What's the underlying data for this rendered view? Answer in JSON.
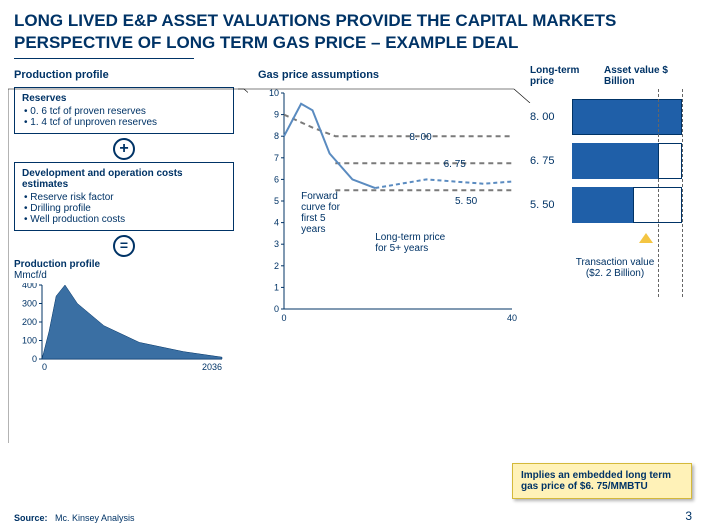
{
  "colors": {
    "brand": "#003366",
    "bar_fill": "#1f5fa8",
    "area_fill": "#3a6fa3",
    "forward_line": "#5a8bc0",
    "longterm_line": "#7a7a7a",
    "callout_bg": "#fff2b8",
    "callout_border": "#d4b93a",
    "triangle": "#f4c542"
  },
  "title": "LONG LIVED E&P ASSET VALUATIONS PROVIDE THE CAPITAL MARKETS PERSPECTIVE  OF LONG TERM GAS PRICE – EXAMPLE DEAL",
  "left": {
    "header": "Production profile",
    "reserves": {
      "title": "Reserves",
      "bullets": [
        "0. 6 tcf of proven reserves",
        "1. 4 tcf of unproven reserves"
      ]
    },
    "costs": {
      "title": "Development and operation costs estimates",
      "bullets": [
        "Reserve risk factor",
        "Drilling profile",
        "Well production costs"
      ]
    },
    "profile": {
      "title": "Production profile",
      "unit": "Mmcf/d"
    },
    "profile_chart": {
      "type": "area",
      "x_range": [
        0,
        2036
      ],
      "y_ticks": [
        0,
        100,
        200,
        300,
        400
      ],
      "points": [
        [
          0,
          0
        ],
        [
          80,
          150
        ],
        [
          160,
          340
        ],
        [
          260,
          400
        ],
        [
          400,
          300
        ],
        [
          700,
          180
        ],
        [
          1100,
          90
        ],
        [
          1600,
          40
        ],
        [
          2036,
          10
        ]
      ],
      "y_max": 400
    }
  },
  "gas": {
    "header": "Gas price assumptions",
    "chart": {
      "type": "line",
      "y_ticks": [
        0,
        1,
        2,
        3,
        4,
        5,
        6,
        7,
        8,
        9,
        10
      ],
      "x_range": [
        0,
        40
      ],
      "forward": {
        "label": "Forward curve for first  5 years",
        "points": [
          [
            0,
            8.0
          ],
          [
            3,
            9.5
          ],
          [
            5,
            9.2
          ],
          [
            8,
            7.2
          ],
          [
            12,
            6.0
          ],
          [
            16,
            5.6
          ]
        ],
        "dash_ext": [
          [
            16,
            5.6
          ],
          [
            25,
            6.0
          ],
          [
            35,
            5.8
          ],
          [
            40,
            5.9
          ]
        ]
      },
      "longterm": {
        "label": "Long-term price for 5+ years",
        "points": [
          [
            0,
            9.0
          ],
          [
            5,
            8.4
          ],
          [
            9,
            8.0
          ],
          [
            15,
            8.0
          ],
          [
            40,
            8.0
          ]
        ],
        "second": [
          [
            9,
            6.75
          ],
          [
            40,
            6.75
          ]
        ],
        "third": [
          [
            9,
            5.5
          ],
          [
            40,
            5.5
          ]
        ]
      },
      "ann": {
        "p8": "8. 00",
        "p675": "6. 75",
        "p55": "5. 50"
      }
    }
  },
  "right": {
    "head1": "Long-term price",
    "head2": "Asset value $ Billion",
    "rows": [
      {
        "label": "8. 00",
        "fill": 1.0,
        "outline_from": 0.0
      },
      {
        "label": "6. 75",
        "fill": 0.78,
        "outline_from": 0.78
      },
      {
        "label": "5. 50",
        "fill": 0.55,
        "outline_from": 0.55
      }
    ],
    "tx_line1": "Transaction value",
    "tx_line2": "($2. 2 Billion)"
  },
  "callout": "Implies an embedded long term gas price of $6. 75/MMBTU",
  "source_label": "Source:",
  "source_value": "Mc. Kinsey Analysis",
  "page": "3"
}
